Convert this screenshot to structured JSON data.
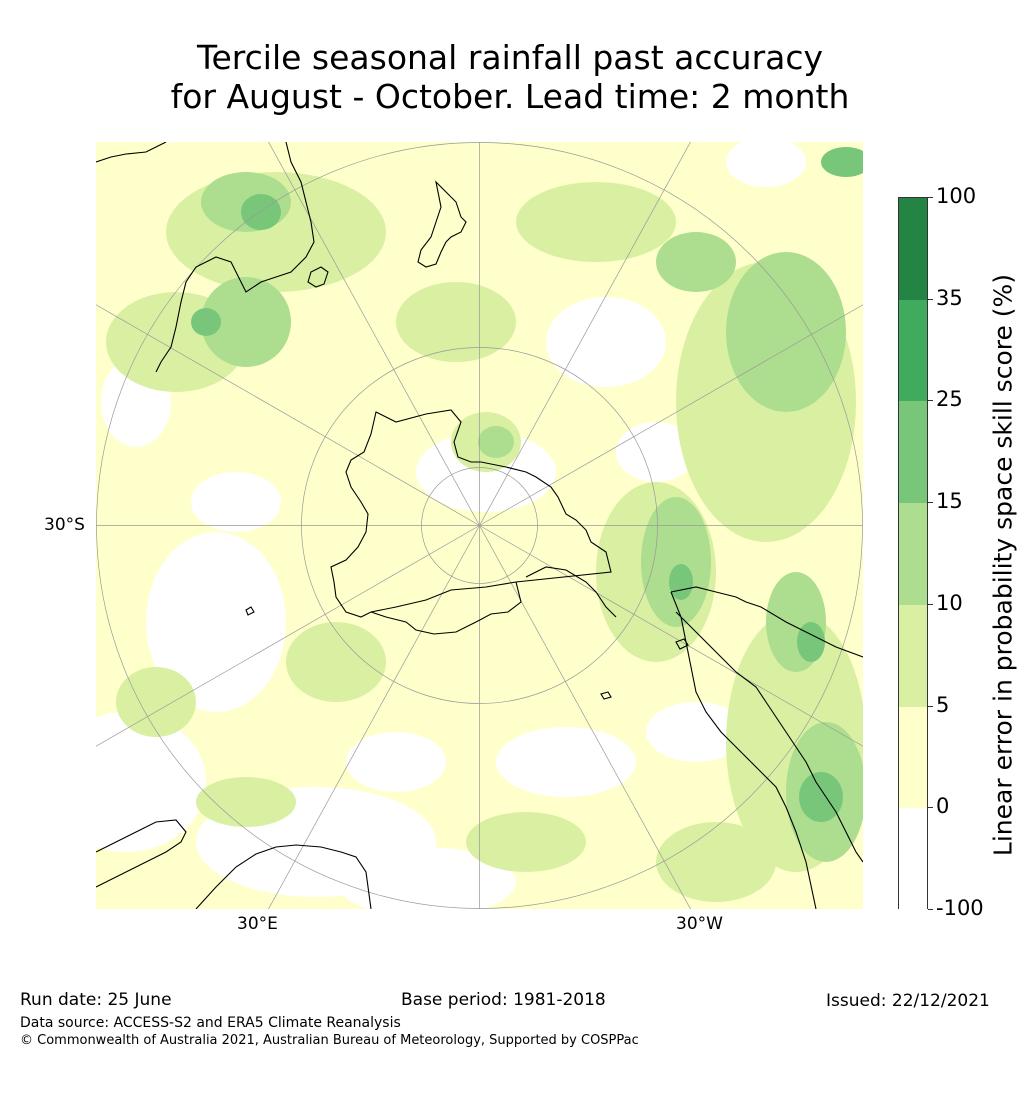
{
  "title_line1": "Tercile seasonal rainfall past accuracy",
  "title_line2": "for August - October. Lead time: 2 month",
  "axis_labels": {
    "lat": "30°S",
    "lon_east": "30°E",
    "lon_west": "30°W"
  },
  "colorbar": {
    "label": "Linear error in probability space skill score (%)",
    "ticks": [
      "100",
      "35",
      "25",
      "15",
      "10",
      "5",
      "0",
      "-100"
    ],
    "levels": [
      {
        "range": "35 to 100",
        "color": "#238443"
      },
      {
        "range": "25 to 35",
        "color": "#41ab5d"
      },
      {
        "range": "15 to 25",
        "color": "#78c679"
      },
      {
        "range": "10 to 15",
        "color": "#addd8e"
      },
      {
        "range": "5 to 10",
        "color": "#d9f0a3"
      },
      {
        "range": "0 to 5",
        "color": "#ffffcc"
      },
      {
        "range": "-100 to 0",
        "color": "#ffffff"
      }
    ]
  },
  "footer": {
    "run_date": "Run date: 25 June",
    "base_period": "Base period: 1981-2018",
    "issued": "Issued: 22/12/2021",
    "data_source": "Data source: ACCESS-S2 and ERA5 Climate Reanalysis",
    "copyright": "© Commonwealth of Australia 2021, Australian Bureau of Meteorology, Supported by COSPPac"
  },
  "map": {
    "projection": "south-polar-stereographic",
    "background_color": "#ffffcc",
    "coastline_color": "#000000",
    "graticule_color": "#999999"
  }
}
